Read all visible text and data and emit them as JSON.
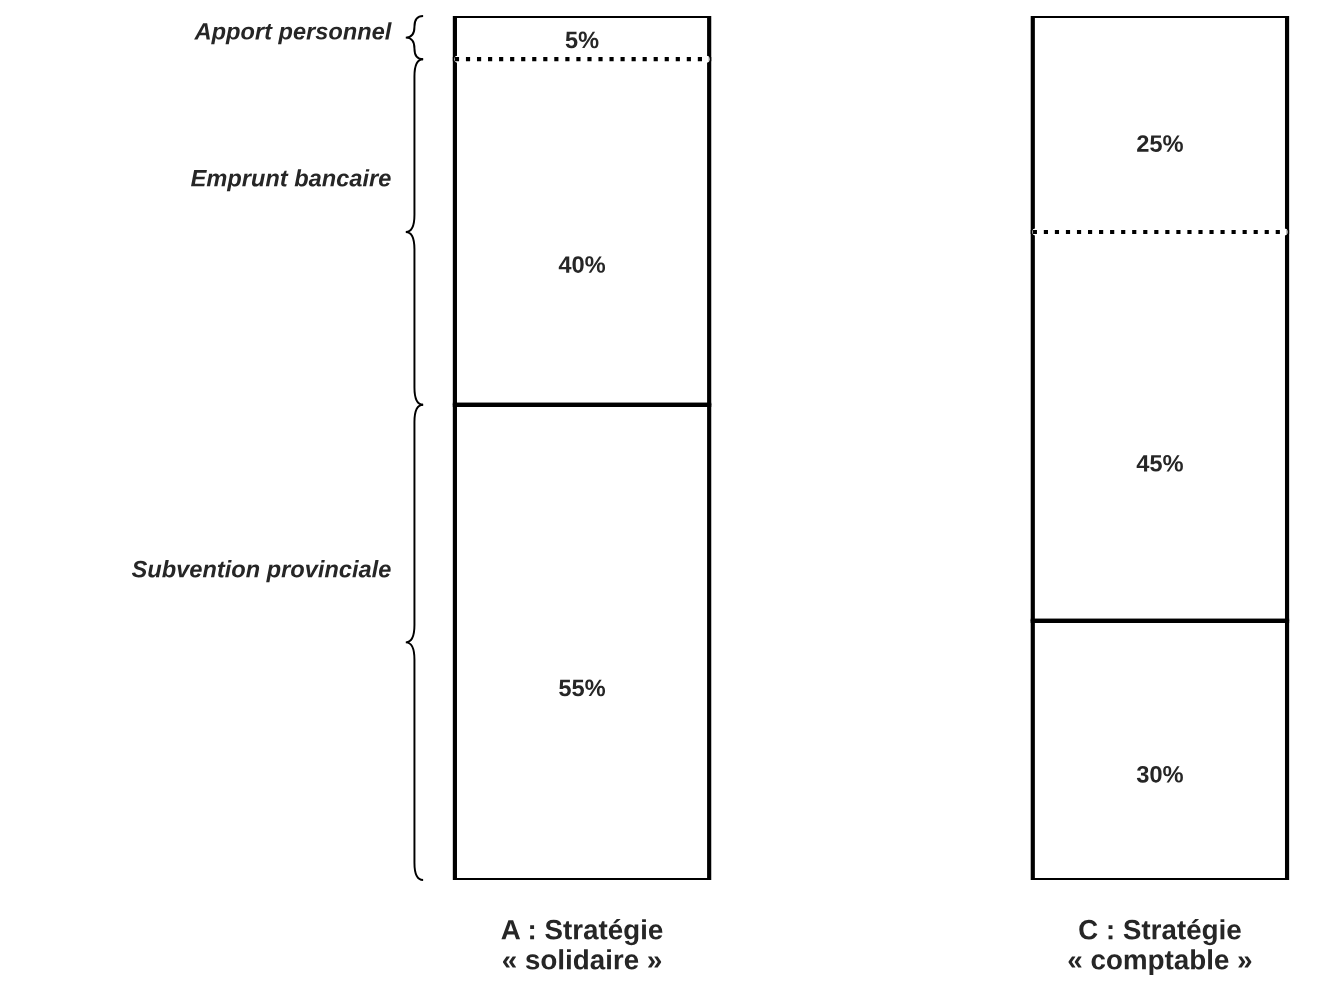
{
  "chart_data": {
    "type": "bar",
    "stacked": true,
    "categories": [
      "A : Stratégie\n« solidaire »",
      "C : Stratégie\n« comptable »"
    ],
    "series": [
      {
        "name": "Subvention provinciale",
        "color": "#ffffff",
        "values": [
          55,
          30
        ],
        "value_labels": [
          "55%",
          "30%"
        ],
        "line_style": "solid"
      },
      {
        "name": "Emprunt bancaire",
        "color": "#ffffff",
        "values": [
          40,
          45
        ],
        "value_labels": [
          "40%",
          "45%"
        ],
        "line_style": "solid"
      },
      {
        "name": "Apport personnel",
        "color": "#ffffff",
        "values": [
          5,
          25
        ],
        "value_labels": [
          "5%",
          "25%"
        ],
        "line_style": "dotted"
      }
    ]
  }
}
